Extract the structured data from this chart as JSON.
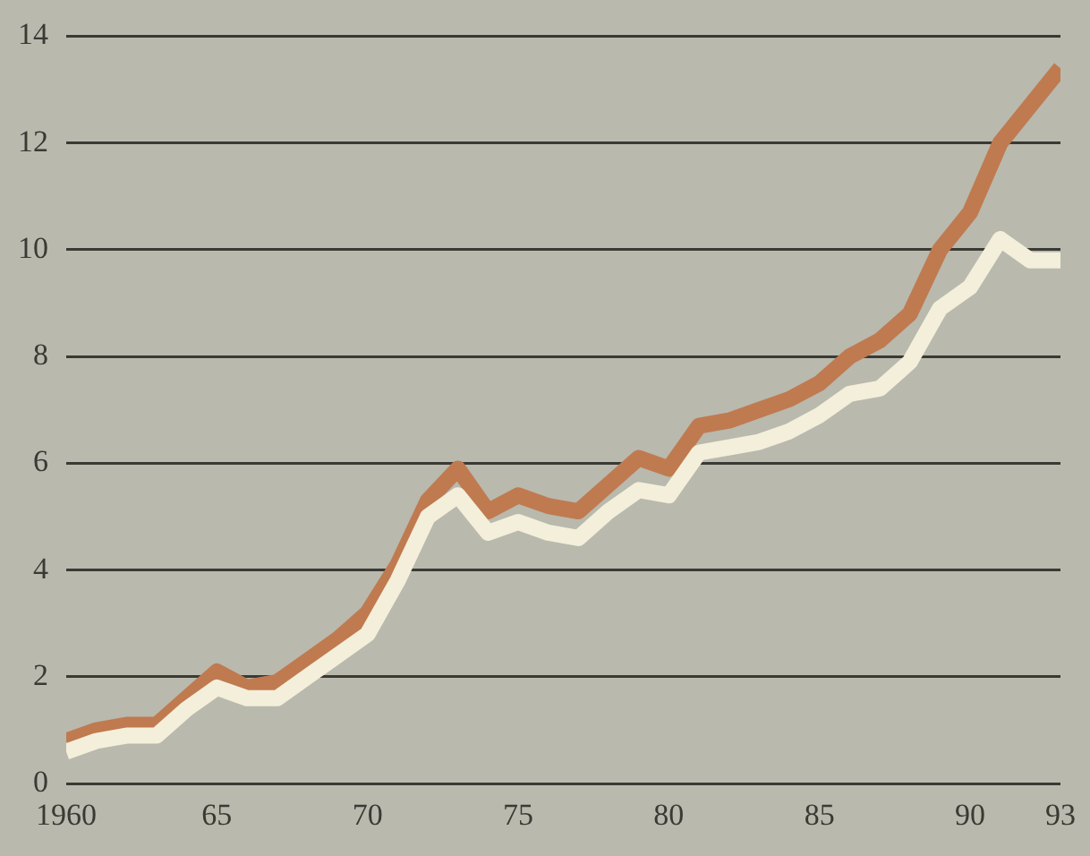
{
  "chart_data": {
    "type": "line",
    "x": [
      1960,
      1961,
      1962,
      1963,
      1964,
      1965,
      1966,
      1967,
      1968,
      1969,
      1970,
      1971,
      1972,
      1973,
      1974,
      1975,
      1976,
      1977,
      1978,
      1979,
      1980,
      1981,
      1982,
      1983,
      1984,
      1985,
      1986,
      1987,
      1988,
      1989,
      1990,
      1991,
      1992,
      1993
    ],
    "series": [
      {
        "color": "#c07a50",
        "values": [
          0.8,
          1.0,
          1.1,
          1.1,
          1.6,
          2.1,
          1.8,
          1.9,
          2.3,
          2.7,
          3.2,
          4.1,
          5.3,
          5.9,
          5.1,
          5.4,
          5.2,
          5.1,
          5.6,
          6.1,
          5.9,
          6.7,
          6.8,
          7.0,
          7.2,
          7.5,
          8.0,
          8.3,
          8.8,
          10.0,
          10.7,
          12.0,
          12.7,
          13.4
        ]
      },
      {
        "color": "#f3efda",
        "values": [
          0.6,
          0.8,
          0.9,
          0.9,
          1.4,
          1.8,
          1.6,
          1.6,
          2.0,
          2.4,
          2.8,
          3.8,
          5.0,
          5.4,
          4.7,
          4.9,
          4.7,
          4.6,
          5.1,
          5.5,
          5.4,
          6.2,
          6.3,
          6.4,
          6.6,
          6.9,
          7.3,
          7.4,
          7.9,
          8.9,
          9.3,
          10.2,
          9.8,
          9.8
        ]
      }
    ],
    "xlim": [
      1960,
      1993
    ],
    "xticks": [
      {
        "value": 1960,
        "label": "1960"
      },
      {
        "value": 1965,
        "label": "65"
      },
      {
        "value": 1970,
        "label": "70"
      },
      {
        "value": 1975,
        "label": "75"
      },
      {
        "value": 1980,
        "label": "80"
      },
      {
        "value": 1985,
        "label": "85"
      },
      {
        "value": 1990,
        "label": "90"
      },
      {
        "value": 1993,
        "label": "93"
      }
    ],
    "ylim": [
      0,
      14
    ],
    "yticks": [
      0,
      2,
      4,
      6,
      8,
      10,
      12,
      14
    ],
    "grid": "y",
    "legend": false,
    "marker": "none",
    "line_style": "solid"
  }
}
